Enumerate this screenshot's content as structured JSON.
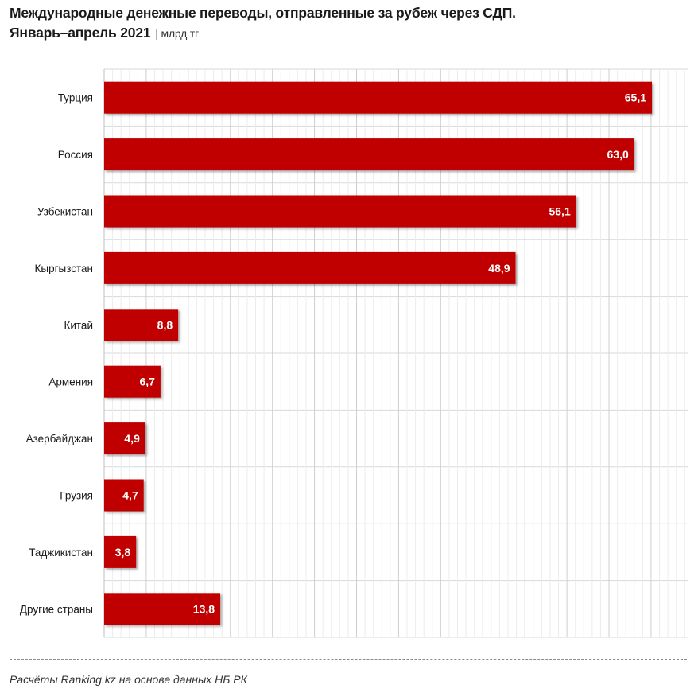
{
  "header": {
    "title_line1": "Международные денежные переводы, отправленные за рубеж через СДП.",
    "title_line2": "Январь–апрель 2021",
    "unit": "| млрд тг"
  },
  "footer": {
    "source": "Расчёты Ranking.kz на основе данных НБ РК"
  },
  "colors": {
    "bar": "#c00000",
    "grid": "#d9d9d9",
    "value_text": "#ffffff",
    "label_text": "#1a1a1a"
  },
  "chart_data": {
    "type": "bar",
    "orientation": "horizontal",
    "title": "Международные денежные переводы, отправленные за рубеж через СДП. Январь–апрель 2021",
    "unit": "млрд тг",
    "categories": [
      "Турция",
      "Россия",
      "Узбекистан",
      "Кыргызстан",
      "Китай",
      "Армения",
      "Азербайджан",
      "Грузия",
      "Таджикистан",
      "Другие страны"
    ],
    "values": [
      65.1,
      63.0,
      56.1,
      48.9,
      8.8,
      6.7,
      4.9,
      4.7,
      3.8,
      13.8
    ],
    "value_labels": [
      "65,1",
      "63,0",
      "56,1",
      "48,9",
      "8,8",
      "6,7",
      "4,9",
      "4,7",
      "3,8",
      "13,8"
    ],
    "xlim": [
      0,
      68
    ],
    "grid": true
  }
}
